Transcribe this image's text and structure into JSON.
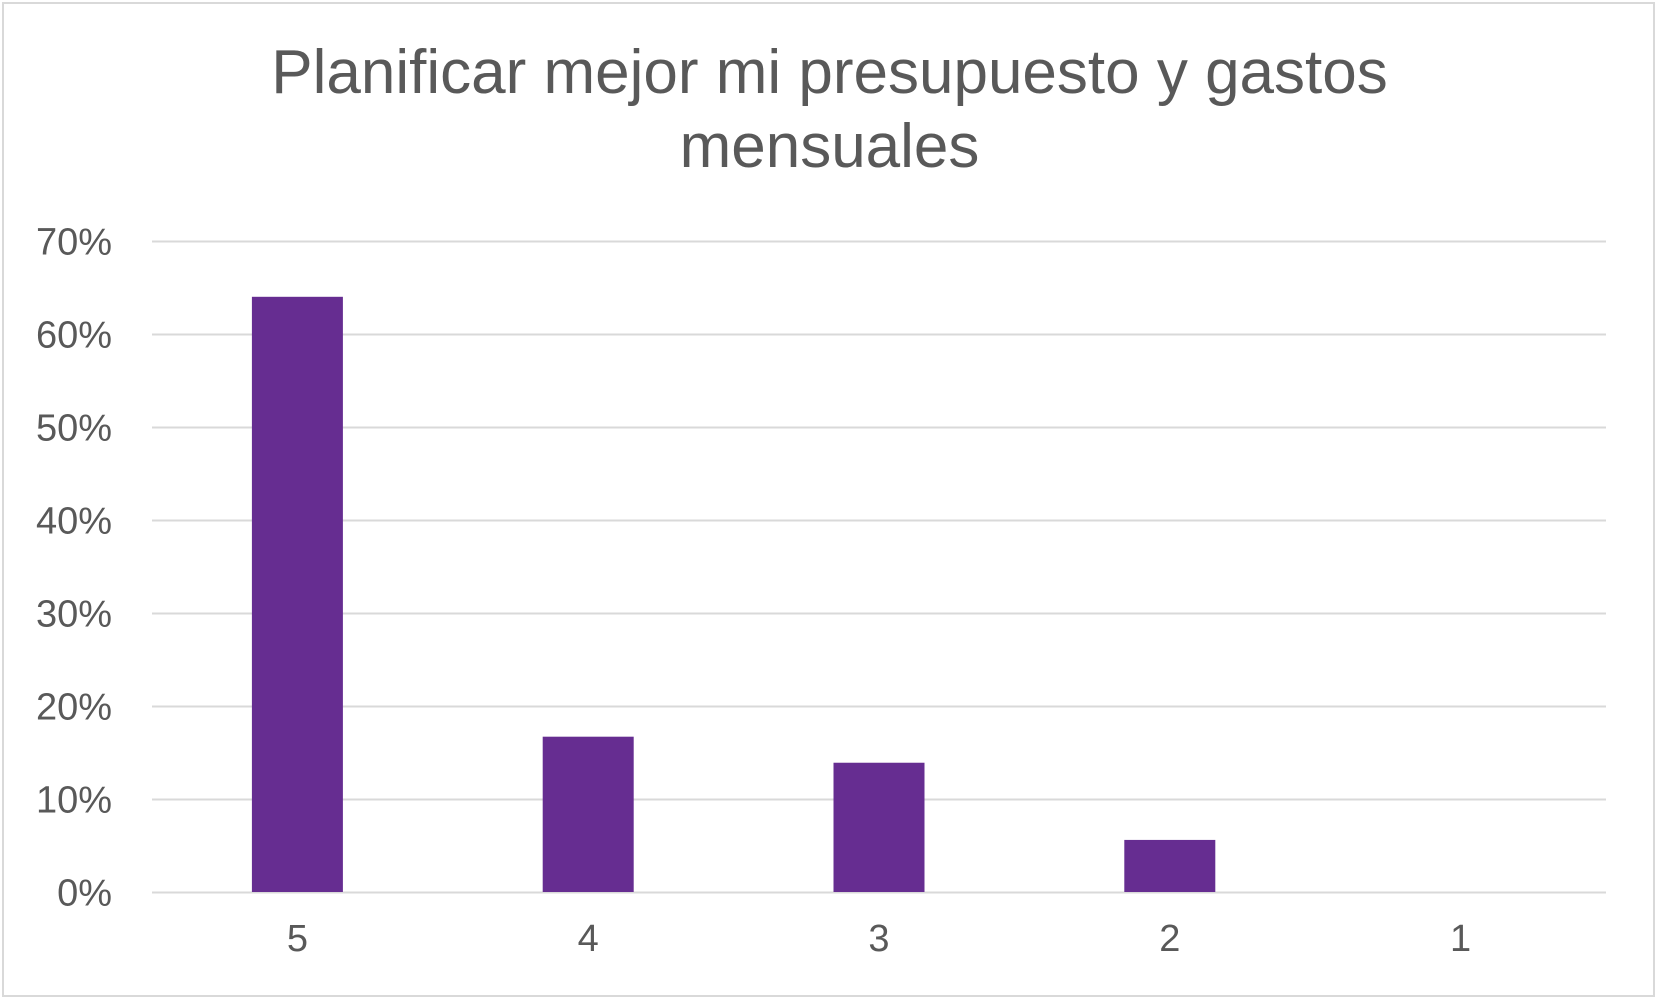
{
  "chart_data": {
    "type": "bar",
    "title_lines": [
      "Planificar mejor mi presupuesto y gastos",
      "mensuales"
    ],
    "categories": [
      "5",
      "4",
      "3",
      "2",
      "1"
    ],
    "values": [
      0.64,
      0.167,
      0.139,
      0.056,
      0
    ],
    "ylim": [
      0,
      0.7
    ],
    "yticks": [
      0,
      0.1,
      0.2,
      0.3,
      0.4,
      0.5,
      0.6,
      0.7
    ],
    "ytick_labels": [
      "0%",
      "10%",
      "20%",
      "30%",
      "40%",
      "50%",
      "60%",
      "70%"
    ],
    "xlabel": "",
    "ylabel": "",
    "grid": true,
    "legend": "none",
    "bar_color": "#662d91",
    "gridline_color": "#d9d9d9",
    "text_color": "#595959"
  }
}
